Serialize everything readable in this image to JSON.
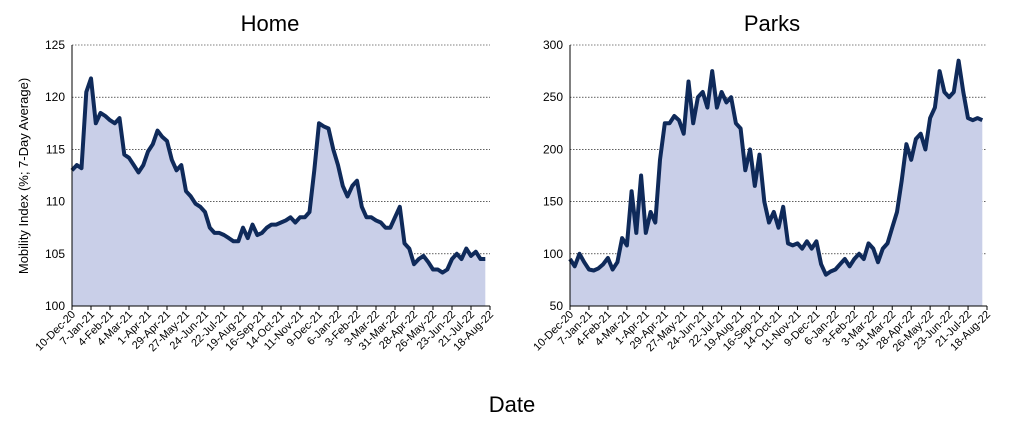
{
  "figure": {
    "xlabel": "Date",
    "ylabel": "Mobility Index (%; 7-Day Average)"
  },
  "x_dates": [
    "10-Dec-20",
    "7-Jan-21",
    "4-Feb-21",
    "4-Mar-21",
    "1-Apr-21",
    "29-Apr-21",
    "27-May-21",
    "24-Jun-21",
    "22-Jul-21",
    "19-Aug-21",
    "16-Sep-21",
    "14-Oct-21",
    "11-Nov-21",
    "9-Dec-21",
    "6-Jan-22",
    "3-Feb-22",
    "3-Mar-22",
    "31-Mar-22",
    "28-Apr-22",
    "26-May-22",
    "23-Jun-22",
    "21-Jul-22",
    "18-Aug-22"
  ],
  "chart_data": [
    {
      "type": "area",
      "title": "Home",
      "ylim": [
        100,
        125
      ],
      "yticks": [
        100,
        105,
        110,
        115,
        120,
        125
      ],
      "grid": true,
      "x": [
        "10-Dec-20",
        "17-Dec-20",
        "24-Dec-20",
        "31-Dec-20",
        "7-Jan-21",
        "14-Jan-21",
        "21-Jan-21",
        "28-Jan-21",
        "4-Feb-21",
        "11-Feb-21",
        "18-Feb-21",
        "25-Feb-21",
        "4-Mar-21",
        "11-Mar-21",
        "18-Mar-21",
        "25-Mar-21",
        "1-Apr-21",
        "8-Apr-21",
        "15-Apr-21",
        "22-Apr-21",
        "29-Apr-21",
        "6-May-21",
        "13-May-21",
        "20-May-21",
        "27-May-21",
        "3-Jun-21",
        "10-Jun-21",
        "17-Jun-21",
        "24-Jun-21",
        "1-Jul-21",
        "8-Jul-21",
        "15-Jul-21",
        "22-Jul-21",
        "29-Jul-21",
        "5-Aug-21",
        "12-Aug-21",
        "19-Aug-21",
        "26-Aug-21",
        "2-Sep-21",
        "9-Sep-21",
        "16-Sep-21",
        "23-Sep-21",
        "30-Sep-21",
        "7-Oct-21",
        "14-Oct-21",
        "21-Oct-21",
        "28-Oct-21",
        "4-Nov-21",
        "11-Nov-21",
        "18-Nov-21",
        "25-Nov-21",
        "2-Dec-21",
        "9-Dec-21",
        "16-Dec-21",
        "23-Dec-21",
        "30-Dec-21",
        "6-Jan-22",
        "13-Jan-22",
        "20-Jan-22",
        "27-Jan-22",
        "3-Feb-22",
        "10-Feb-22",
        "17-Feb-22",
        "24-Feb-22",
        "3-Mar-22",
        "10-Mar-22",
        "17-Mar-22",
        "24-Mar-22",
        "31-Mar-22",
        "7-Apr-22",
        "14-Apr-22",
        "21-Apr-22",
        "28-Apr-22",
        "5-May-22",
        "12-May-22",
        "19-May-22",
        "26-May-22",
        "2-Jun-22",
        "9-Jun-22",
        "16-Jun-22",
        "23-Jun-22",
        "30-Jun-22",
        "7-Jul-22",
        "14-Jul-22",
        "21-Jul-22",
        "28-Jul-22",
        "4-Aug-22",
        "11-Aug-22"
      ],
      "series": [
        {
          "values": [
            113.0,
            113.5,
            113.2,
            120.5,
            121.8,
            117.5,
            118.5,
            118.2,
            117.8,
            117.5,
            118.0,
            114.5,
            114.2,
            113.5,
            112.8,
            113.5,
            114.8,
            115.5,
            116.8,
            116.2,
            115.8,
            114.0,
            113.0,
            113.5,
            111.0,
            110.5,
            109.8,
            109.5,
            109.0,
            107.5,
            107.0,
            107.0,
            106.8,
            106.5,
            106.2,
            106.2,
            107.5,
            106.5,
            107.8,
            106.8,
            107.0,
            107.5,
            107.8,
            107.8,
            108.0,
            108.2,
            108.5,
            108.0,
            108.5,
            108.5,
            109.0,
            113.0,
            117.5,
            117.2,
            117.0,
            115.0,
            113.5,
            111.5,
            110.5,
            111.5,
            112.0,
            109.5,
            108.5,
            108.5,
            108.2,
            108.0,
            107.5,
            107.5,
            108.5,
            109.5,
            106.0,
            105.5,
            104.0,
            104.5,
            104.8,
            104.2,
            103.5,
            103.5,
            103.2,
            103.5,
            104.5,
            105.0,
            104.5,
            105.5,
            104.8,
            105.2,
            104.5,
            104.5
          ]
        }
      ]
    },
    {
      "type": "area",
      "title": "Parks",
      "ylim": [
        50,
        300
      ],
      "yticks": [
        50,
        100,
        150,
        200,
        250,
        300
      ],
      "grid": true,
      "x": [
        "10-Dec-20",
        "17-Dec-20",
        "24-Dec-20",
        "31-Dec-20",
        "7-Jan-21",
        "14-Jan-21",
        "21-Jan-21",
        "28-Jan-21",
        "4-Feb-21",
        "11-Feb-21",
        "18-Feb-21",
        "25-Feb-21",
        "4-Mar-21",
        "11-Mar-21",
        "18-Mar-21",
        "25-Mar-21",
        "1-Apr-21",
        "8-Apr-21",
        "15-Apr-21",
        "22-Apr-21",
        "29-Apr-21",
        "6-May-21",
        "13-May-21",
        "20-May-21",
        "27-May-21",
        "3-Jun-21",
        "10-Jun-21",
        "17-Jun-21",
        "24-Jun-21",
        "1-Jul-21",
        "8-Jul-21",
        "15-Jul-21",
        "22-Jul-21",
        "29-Jul-21",
        "5-Aug-21",
        "12-Aug-21",
        "19-Aug-21",
        "26-Aug-21",
        "2-Sep-21",
        "9-Sep-21",
        "16-Sep-21",
        "23-Sep-21",
        "30-Sep-21",
        "7-Oct-21",
        "14-Oct-21",
        "21-Oct-21",
        "28-Oct-21",
        "4-Nov-21",
        "11-Nov-21",
        "18-Nov-21",
        "25-Nov-21",
        "2-Dec-21",
        "9-Dec-21",
        "16-Dec-21",
        "23-Dec-21",
        "30-Dec-21",
        "6-Jan-22",
        "13-Jan-22",
        "20-Jan-22",
        "27-Jan-22",
        "3-Feb-22",
        "10-Feb-22",
        "17-Feb-22",
        "24-Feb-22",
        "3-Mar-22",
        "10-Mar-22",
        "17-Mar-22",
        "24-Mar-22",
        "31-Mar-22",
        "7-Apr-22",
        "14-Apr-22",
        "21-Apr-22",
        "28-Apr-22",
        "5-May-22",
        "12-May-22",
        "19-May-22",
        "26-May-22",
        "2-Jun-22",
        "9-Jun-22",
        "16-Jun-22",
        "23-Jun-22",
        "30-Jun-22",
        "7-Jul-22",
        "14-Jul-22",
        "21-Jul-22",
        "28-Jul-22",
        "4-Aug-22",
        "11-Aug-22"
      ],
      "series": [
        {
          "values": [
            95,
            88,
            100,
            92,
            85,
            84,
            86,
            90,
            96,
            85,
            92,
            115,
            108,
            160,
            120,
            175,
            120,
            140,
            130,
            190,
            225,
            225,
            232,
            228,
            215,
            265,
            225,
            250,
            255,
            240,
            275,
            240,
            255,
            245,
            250,
            225,
            220,
            180,
            200,
            165,
            195,
            150,
            130,
            140,
            125,
            145,
            110,
            108,
            110,
            105,
            112,
            105,
            112,
            90,
            80,
            83,
            85,
            90,
            95,
            88,
            95,
            100,
            95,
            110,
            105,
            92,
            105,
            110,
            125,
            140,
            170,
            205,
            190,
            210,
            215,
            200,
            230,
            240,
            275,
            255,
            250,
            255,
            285,
            255,
            230,
            228,
            230,
            228
          ]
        }
      ]
    }
  ]
}
